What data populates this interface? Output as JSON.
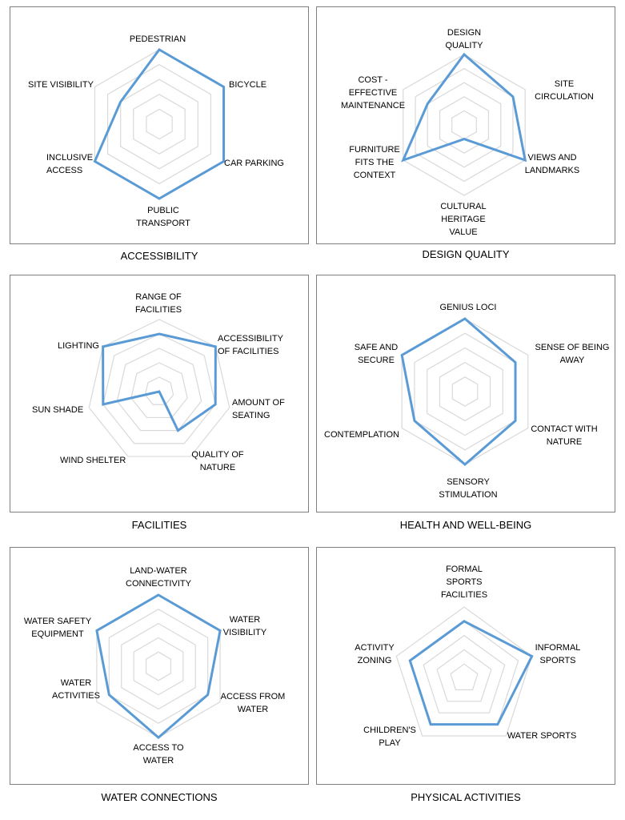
{
  "colors": {
    "series": "#5b9bd5",
    "grid": "#d9d9d9",
    "frame": "#7f7f7f"
  },
  "chart_data": [
    {
      "type": "radar",
      "title": "ACCESSIBILITY",
      "rlim": [
        0,
        5
      ],
      "grid": true,
      "categories": [
        "PEDESTRIAN",
        "BICYCLE",
        "CAR PARKING",
        "PUBLIC TRANSPORT",
        "INCLUSIVE ACCESS",
        "SITE VISIBILITY"
      ],
      "values": [
        5,
        5,
        5,
        5,
        5,
        3
      ]
    },
    {
      "type": "radar",
      "title": "DESIGN QUALITY",
      "rlim": [
        0,
        5
      ],
      "grid": true,
      "categories": [
        "DESIGN QUALITY",
        "SITE CIRCULATION",
        "VIEWS AND LANDMARKS",
        "CULTURAL HERITAGE VALUE",
        "FURNITURE FITS THE CONTEXT",
        "COST - EFFECTIVE MAINTENANCE"
      ],
      "values": [
        5,
        4,
        5,
        1,
        5,
        3
      ]
    },
    {
      "type": "radar",
      "title": "FACILITIES",
      "rlim": [
        0,
        5
      ],
      "grid": true,
      "categories": [
        "RANGE OF FACILITIES",
        "ACCESSIBILITY OF FACILITIES",
        "AMOUNT OF SEATING",
        "QUALITY OF NATURE",
        "WIND SHELTER",
        "SUN SHADE",
        "LIGHTING"
      ],
      "values": [
        4,
        5,
        4,
        3,
        0,
        4,
        5
      ]
    },
    {
      "type": "radar",
      "title": "HEALTH AND WELL-BEING",
      "rlim": [
        0,
        5
      ],
      "grid": true,
      "categories": [
        "GENIUS LOCI",
        "SENSE OF BEING AWAY",
        "CONTACT WITH NATURE",
        "SENSORY STIMULATION",
        "CONTEMPLATION",
        "SAFE AND SECURE"
      ],
      "values": [
        5,
        4,
        4,
        5,
        4,
        5
      ]
    },
    {
      "type": "radar",
      "title": "WATER CONNECTIONS",
      "rlim": [
        0,
        5
      ],
      "grid": true,
      "categories": [
        "LAND-WATER CONNECTIVITY",
        "WATER VISIBILITY",
        "ACCESS FROM WATER",
        "ACCESS TO WATER",
        "WATER ACTIVITIES",
        "WATER SAFETY EQUIPMENT"
      ],
      "values": [
        5,
        5,
        4,
        5,
        4,
        5
      ]
    },
    {
      "type": "radar",
      "title": "PHYSICAL ACTIVITIES",
      "rlim": [
        0,
        5
      ],
      "grid": true,
      "categories": [
        "FORMAL SPORTS FACILITIES",
        "INFORMAL SPORTS",
        "WATER SPORTS",
        "CHILDREN'S PLAY",
        "ACTIVITY ZONING"
      ],
      "values": [
        4,
        5,
        4,
        4,
        4
      ]
    }
  ]
}
